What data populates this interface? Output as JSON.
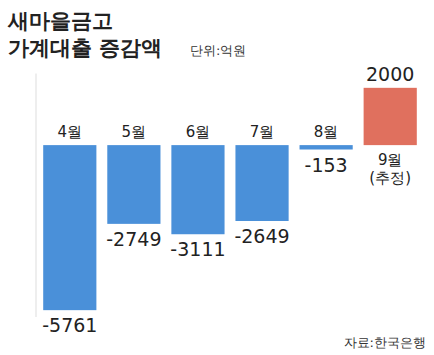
{
  "chart_data": {
    "type": "bar",
    "title": "새마을금고\n가계대출 증감액",
    "subtitle": "단위:억원",
    "annotations": [
      "자료:한국은행"
    ],
    "categories": [
      "4월",
      "5월",
      "6월",
      "7월",
      "8월",
      "9월\n(추정)"
    ],
    "values": [
      -5761,
      -2749,
      -3111,
      -2649,
      -153,
      2000
    ],
    "colors": [
      "#4a90d9",
      "#4a90d9",
      "#4a90d9",
      "#4a90d9",
      "#4a90d9",
      "#e0705e"
    ],
    "ylim": [
      -6000,
      2500
    ],
    "grid": false,
    "data_labels": true,
    "tick_labels": "x"
  }
}
